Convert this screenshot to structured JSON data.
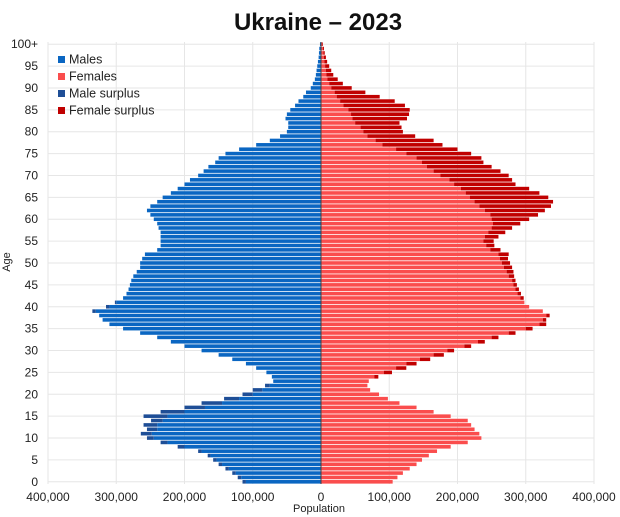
{
  "chart_data": {
    "type": "bar",
    "orientation": "horizontal",
    "title": "Ukraine – 2023",
    "xlabel": "Population",
    "ylabel": "Age",
    "xlim": [
      -400000,
      400000
    ],
    "ylim": [
      0,
      101
    ],
    "x_ticks": [
      -400000,
      -300000,
      -200000,
      -100000,
      0,
      100000,
      200000,
      300000,
      400000
    ],
    "x_tick_labels": [
      "400,000",
      "300,000",
      "200,000",
      "100,000",
      "0",
      "100,000",
      "200,000",
      "300,000",
      "400,000"
    ],
    "y_ticks": [
      0,
      5,
      10,
      15,
      20,
      25,
      30,
      35,
      40,
      45,
      50,
      55,
      60,
      65,
      70,
      75,
      80,
      85,
      90,
      95,
      100
    ],
    "y_tick_labels": [
      "0",
      "5",
      "10",
      "15",
      "20",
      "25",
      "30",
      "35",
      "40",
      "45",
      "50",
      "55",
      "60",
      "65",
      "70",
      "75",
      "80",
      "85",
      "90",
      "95",
      "100+"
    ],
    "grid": true,
    "legend_position": "top-left",
    "legend": [
      {
        "label": "Males",
        "color": "#0a66c2"
      },
      {
        "label": "Females",
        "color": "#fa4d4d"
      },
      {
        "label": "Male surplus",
        "color": "#1e4e96"
      },
      {
        "label": "Female surplus",
        "color": "#c00000"
      }
    ],
    "ages": [
      0,
      1,
      2,
      3,
      4,
      5,
      6,
      7,
      8,
      9,
      10,
      11,
      12,
      13,
      14,
      15,
      16,
      17,
      18,
      19,
      20,
      21,
      22,
      23,
      24,
      25,
      26,
      27,
      28,
      29,
      30,
      31,
      32,
      33,
      34,
      35,
      36,
      37,
      38,
      39,
      40,
      41,
      42,
      43,
      44,
      45,
      46,
      47,
      48,
      49,
      50,
      51,
      52,
      53,
      54,
      55,
      56,
      57,
      58,
      59,
      60,
      61,
      62,
      63,
      64,
      65,
      66,
      67,
      68,
      69,
      70,
      71,
      72,
      73,
      74,
      75,
      76,
      77,
      78,
      79,
      80,
      81,
      82,
      83,
      84,
      85,
      86,
      87,
      88,
      89,
      90,
      91,
      92,
      93,
      94,
      95,
      96,
      97,
      98,
      99,
      100
    ],
    "series": [
      {
        "name": "Males",
        "values": [
          110000,
          117000,
          125000,
          135000,
          145000,
          153000,
          162000,
          175000,
          200000,
          225000,
          245000,
          248000,
          240000,
          240000,
          232000,
          225000,
          200000,
          170000,
          145000,
          120000,
          100000,
          86000,
          75000,
          70000,
          72000,
          80000,
          95000,
          110000,
          130000,
          150000,
          175000,
          200000,
          220000,
          240000,
          265000,
          290000,
          310000,
          320000,
          325000,
          330000,
          310000,
          300000,
          290000,
          285000,
          282000,
          280000,
          278000,
          275000,
          270000,
          265000,
          265000,
          262000,
          258000,
          240000,
          235000,
          235000,
          235000,
          235000,
          238000,
          240000,
          245000,
          250000,
          255000,
          250000,
          240000,
          232000,
          220000,
          210000,
          200000,
          192000,
          180000,
          172000,
          165000,
          155000,
          150000,
          140000,
          120000,
          95000,
          75000,
          60000,
          50000,
          48000,
          48000,
          52000,
          50000,
          45000,
          38000,
          33000,
          26000,
          22000,
          15000,
          12000,
          9000,
          7500,
          6500,
          5500,
          4500,
          3500,
          3000,
          2500,
          1500
        ]
      },
      {
        "name": "Females",
        "values": [
          105000,
          112000,
          120000,
          130000,
          140000,
          148000,
          158000,
          170000,
          190000,
          215000,
          235000,
          232000,
          225000,
          220000,
          215000,
          190000,
          165000,
          140000,
          115000,
          98000,
          85000,
          72000,
          68000,
          70000,
          78000,
          92000,
          110000,
          125000,
          145000,
          165000,
          185000,
          210000,
          230000,
          250000,
          275000,
          300000,
          320000,
          325000,
          330000,
          325000,
          305000,
          298000,
          292000,
          288000,
          285000,
          282000,
          280000,
          275000,
          272000,
          268000,
          265000,
          262000,
          260000,
          248000,
          242000,
          238000,
          240000,
          245000,
          250000,
          252000,
          250000,
          248000,
          240000,
          232000,
          225000,
          218000,
          212000,
          205000,
          195000,
          188000,
          175000,
          165000,
          155000,
          148000,
          140000,
          125000,
          110000,
          90000,
          80000,
          68000,
          62000,
          58000,
          50000,
          46000,
          44000,
          40000,
          33000,
          28000,
          23000,
          20000,
          15000,
          12000,
          9500,
          8000,
          7000,
          6000,
          5000,
          4200,
          3500,
          2800,
          1800
        ]
      },
      {
        "name": "Male surplus",
        "values": [
          5000,
          5000,
          5000,
          5000,
          5000,
          5000,
          4000,
          5000,
          10000,
          10000,
          10000,
          16000,
          15000,
          20000,
          17000,
          35000,
          35000,
          30000,
          30000,
          22000,
          15000,
          14000,
          7000,
          0,
          0,
          0,
          0,
          0,
          0,
          0,
          0,
          0,
          0,
          0,
          0,
          0,
          0,
          0,
          0,
          5000,
          5000,
          2000,
          0,
          0,
          0,
          0,
          0,
          0,
          0,
          0,
          0,
          0,
          0,
          0,
          0,
          0,
          0,
          0,
          0,
          0,
          0,
          0,
          0,
          0,
          0,
          0,
          0,
          0,
          0,
          0,
          0,
          0,
          0,
          0,
          0,
          0,
          0,
          0,
          0,
          0,
          0,
          0,
          0,
          0,
          0,
          0,
          0,
          0,
          0,
          0,
          0,
          0,
          0,
          0,
          0,
          0,
          0,
          0,
          0,
          0,
          0
        ]
      },
      {
        "name": "Female surplus",
        "values": [
          0,
          0,
          0,
          0,
          0,
          0,
          0,
          0,
          0,
          0,
          0,
          0,
          0,
          0,
          0,
          0,
          0,
          0,
          0,
          0,
          0,
          0,
          0,
          0,
          6000,
          12000,
          15000,
          15000,
          15000,
          15000,
          10000,
          10000,
          10000,
          10000,
          10000,
          10000,
          10000,
          5000,
          5000,
          0,
          0,
          0,
          5000,
          5000,
          5000,
          5000,
          5000,
          8000,
          10000,
          12000,
          12000,
          12000,
          15000,
          15000,
          12000,
          15000,
          20000,
          25000,
          30000,
          40000,
          55000,
          70000,
          88000,
          105000,
          115000,
          115000,
          108000,
          100000,
          90000,
          92000,
          100000,
          98000,
          95000,
          90000,
          95000,
          95000,
          90000,
          88000,
          85000,
          70000,
          58000,
          60000,
          65000,
          80000,
          85000,
          90000,
          90000,
          80000,
          63000,
          45000,
          30000,
          20000,
          15000,
          10000,
          8000,
          6000,
          4000,
          3000,
          2000,
          1500,
          1000
        ]
      }
    ]
  }
}
